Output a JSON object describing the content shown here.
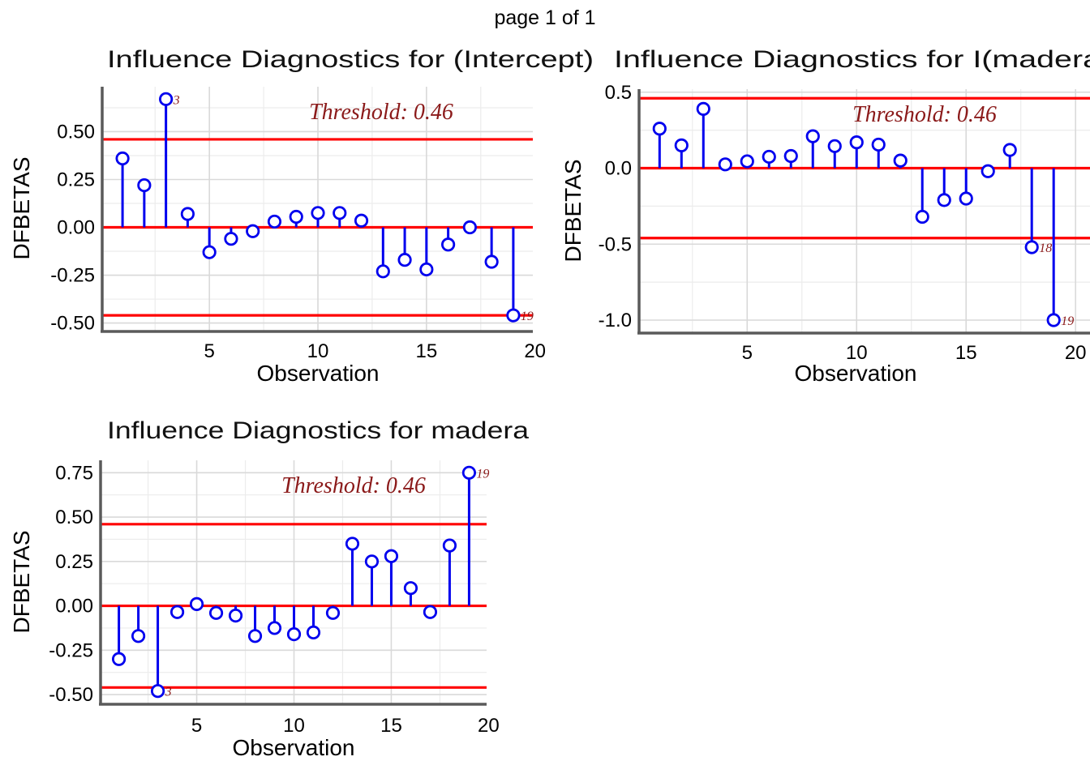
{
  "page_header": "page 1 of 1",
  "colors": {
    "stem": "#0000ee",
    "reference_line": "#ff0000",
    "annotation": "#8b1a1a",
    "grid_major": "#d9d9d9",
    "grid_minor": "#ececec",
    "spine": "#5a5a5a",
    "text": "#000000"
  },
  "chart_data": [
    {
      "type": "stem",
      "title": "Influence Diagnostics for (Intercept)",
      "xlabel": "Observation",
      "ylabel": "DFBETAS",
      "threshold_label": "Threshold: 0.46",
      "threshold": 0.46,
      "ref_lines": [
        0.46,
        0,
        -0.46
      ],
      "x": [
        1,
        2,
        3,
        4,
        5,
        6,
        7,
        8,
        9,
        10,
        11,
        12,
        13,
        14,
        15,
        16,
        17,
        18,
        19
      ],
      "values": [
        0.36,
        0.22,
        0.67,
        0.07,
        -0.13,
        -0.06,
        -0.02,
        0.03,
        0.055,
        0.075,
        0.075,
        0.035,
        -0.23,
        -0.17,
        -0.22,
        -0.09,
        0.0,
        -0.18,
        -0.46
      ],
      "point_labels": [
        {
          "x": 3,
          "label": "3"
        },
        {
          "x": 19,
          "label": "19"
        }
      ],
      "xticks": [
        5,
        10,
        15,
        20
      ],
      "yticks": [
        0.5,
        0.25,
        0,
        -0.25,
        -0.5
      ],
      "ytick_labels": [
        "0.50",
        "0.25",
        "0.00",
        "-0.25",
        "-0.50"
      ],
      "xlim": [
        0.1,
        19.9
      ],
      "ylim": [
        -0.54,
        0.735
      ],
      "grid": true
    },
    {
      "type": "stem",
      "title": "Influence Diagnostics for I(madera",
      "xlabel": "Observation",
      "ylabel": "DFBETAS",
      "threshold_label": "Threshold: 0.46",
      "threshold": 0.46,
      "ref_lines": [
        0.46,
        0,
        -0.46
      ],
      "x": [
        1,
        2,
        3,
        4,
        5,
        6,
        7,
        8,
        9,
        10,
        11,
        12,
        13,
        14,
        15,
        16,
        17,
        18,
        19
      ],
      "values": [
        0.26,
        0.15,
        0.39,
        0.025,
        0.045,
        0.075,
        0.08,
        0.21,
        0.145,
        0.17,
        0.155,
        0.05,
        -0.32,
        -0.21,
        -0.2,
        -0.02,
        0.12,
        -0.52,
        -1.0
      ],
      "point_labels": [
        {
          "x": 18,
          "label": "18"
        },
        {
          "x": 19,
          "label": "19"
        }
      ],
      "xticks": [
        5,
        10,
        15,
        20
      ],
      "yticks": [
        0.5,
        0,
        -0.5,
        -1.0
      ],
      "ytick_labels": [
        "0.5",
        "0.0",
        "-0.5",
        "-1.0"
      ],
      "xlim": [
        0.1,
        20.66
      ],
      "ylim": [
        -1.08,
        0.52
      ],
      "grid": true
    },
    {
      "type": "stem",
      "title": "Influence Diagnostics for madera",
      "xlabel": "Observation",
      "ylabel": "DFBETAS",
      "threshold_label": "Threshold: 0.46",
      "threshold": 0.46,
      "ref_lines": [
        0.46,
        0,
        -0.46
      ],
      "x": [
        1,
        2,
        3,
        4,
        5,
        6,
        7,
        8,
        9,
        10,
        11,
        12,
        13,
        14,
        15,
        16,
        17,
        18,
        19
      ],
      "values": [
        -0.3,
        -0.17,
        -0.48,
        -0.035,
        0.01,
        -0.04,
        -0.055,
        -0.17,
        -0.125,
        -0.16,
        -0.15,
        -0.04,
        0.35,
        0.25,
        0.28,
        0.1,
        -0.035,
        0.34,
        0.75
      ],
      "point_labels": [
        {
          "x": 3,
          "label": "3"
        },
        {
          "x": 19,
          "label": "19"
        }
      ],
      "xticks": [
        5,
        10,
        15,
        20
      ],
      "yticks": [
        0.75,
        0.5,
        0.25,
        0,
        -0.25,
        -0.5
      ],
      "ytick_labels": [
        "0.75",
        "0.50",
        "0.25",
        "0.00",
        "-0.25",
        "-0.50"
      ],
      "xlim": [
        0.1,
        19.9
      ],
      "ylim": [
        -0.55,
        0.82
      ],
      "grid": true
    }
  ]
}
